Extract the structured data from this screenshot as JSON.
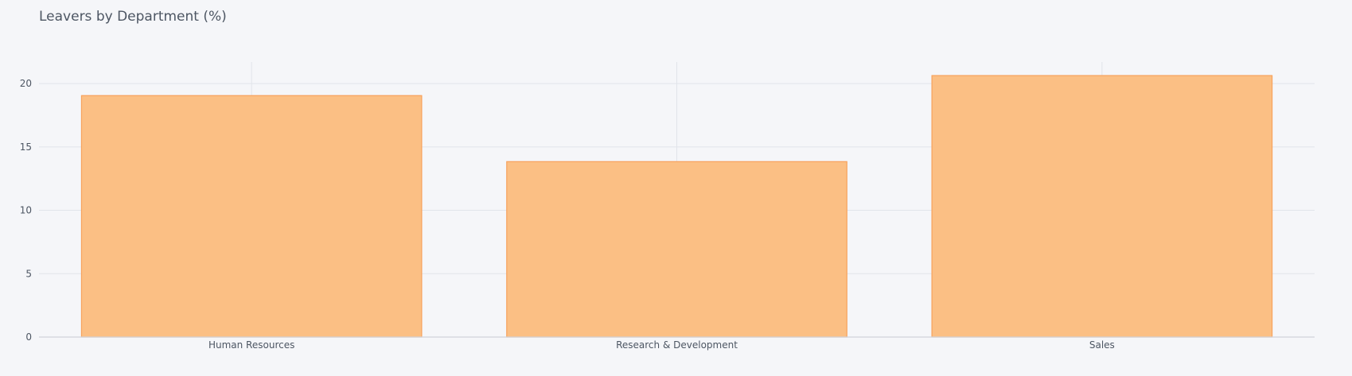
{
  "chart_data": {
    "type": "bar",
    "title": "Leavers by Department (%)",
    "xlabel": "",
    "ylabel": "",
    "categories": [
      "Human Resources",
      "Research & Development",
      "Sales"
    ],
    "values": [
      19.05,
      13.84,
      20.63
    ],
    "ylim": [
      0,
      21.7
    ],
    "yticks": [
      0,
      5,
      10,
      15,
      20
    ],
    "grid": true,
    "legend": "none",
    "bar_fill": "#fbbf84",
    "bar_stroke": "#f7a25c",
    "grid_color": "#e1e4ea",
    "axis_line_color": "#d0d4db",
    "text_color": "#4d5663",
    "background": "#f5f6f9"
  }
}
